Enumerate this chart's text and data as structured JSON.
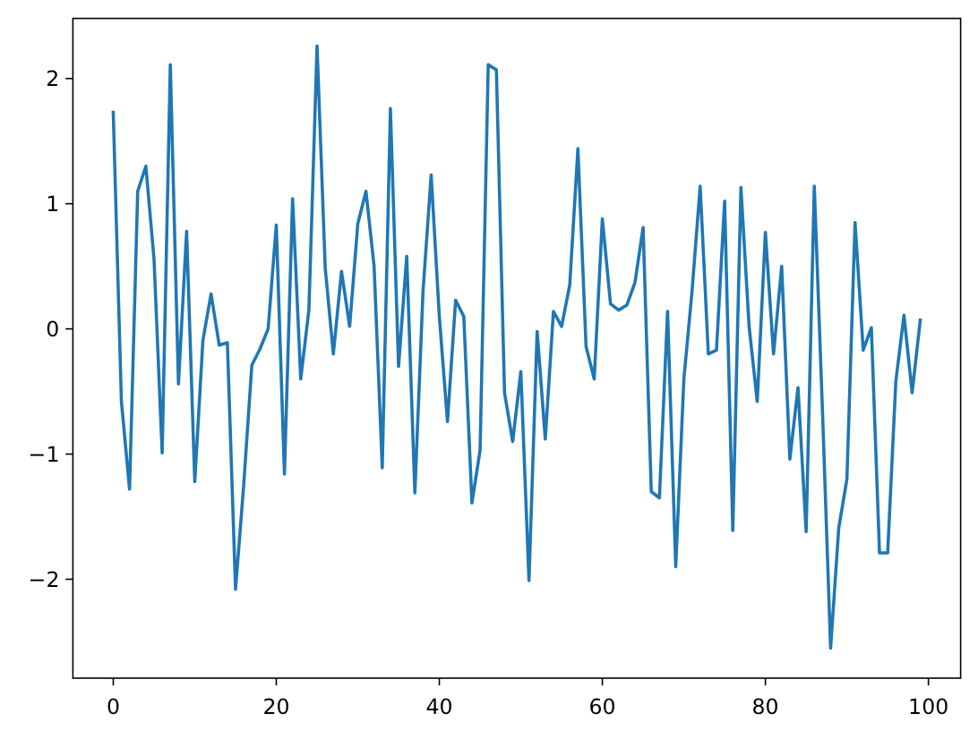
{
  "chart_data": {
    "type": "line",
    "x": [
      0,
      1,
      2,
      3,
      4,
      5,
      6,
      7,
      8,
      9,
      10,
      11,
      12,
      13,
      14,
      15,
      16,
      17,
      18,
      19,
      20,
      21,
      22,
      23,
      24,
      25,
      26,
      27,
      28,
      29,
      30,
      31,
      32,
      33,
      34,
      35,
      36,
      37,
      38,
      39,
      40,
      41,
      42,
      43,
      44,
      45,
      46,
      47,
      48,
      49,
      50,
      51,
      52,
      53,
      54,
      55,
      56,
      57,
      58,
      59,
      60,
      61,
      62,
      63,
      64,
      65,
      66,
      67,
      68,
      69,
      70,
      71,
      72,
      73,
      74,
      75,
      76,
      77,
      78,
      79,
      80,
      81,
      82,
      83,
      84,
      85,
      86,
      87,
      88,
      89,
      90,
      91,
      92,
      93,
      94,
      95,
      96,
      97,
      98,
      99
    ],
    "series": [
      {
        "color": "#1f77b4",
        "values": [
          1.73,
          -0.58,
          -1.28,
          1.1,
          1.3,
          0.56,
          -0.99,
          2.11,
          -0.44,
          0.78,
          -1.22,
          -0.09,
          0.28,
          -0.13,
          -0.11,
          -2.08,
          -1.25,
          -0.29,
          -0.16,
          0.0,
          0.83,
          -1.16,
          1.04,
          -0.4,
          0.15,
          2.26,
          0.49,
          -0.2,
          0.46,
          0.02,
          0.84,
          1.1,
          0.5,
          -1.11,
          1.76,
          -0.3,
          0.58,
          -1.31,
          0.3,
          1.23,
          0.1,
          -0.74,
          0.23,
          0.1,
          -1.39,
          -0.97,
          2.11,
          2.07,
          -0.51,
          -0.9,
          -0.34,
          -2.01,
          -0.02,
          -0.88,
          0.14,
          0.02,
          0.35,
          1.44,
          -0.14,
          -0.4,
          0.88,
          0.2,
          0.15,
          0.19,
          0.37,
          0.81,
          -1.3,
          -1.35,
          0.14,
          -1.9,
          -0.4,
          0.3,
          1.14,
          -0.2,
          -0.17,
          1.02,
          -1.61,
          1.13,
          0.02,
          -0.58,
          0.77,
          -0.2,
          0.5,
          -1.04,
          -0.47,
          -1.62,
          1.14,
          -0.65,
          -2.55,
          -1.59,
          -1.2,
          0.85,
          -0.17,
          0.01,
          -1.79,
          -1.79,
          -0.42,
          0.11,
          -0.51,
          0.07
        ]
      }
    ],
    "xlim": [
      -4.95,
      103.95
    ],
    "ylim": [
      -2.79,
      2.48
    ],
    "xticks": [
      0,
      20,
      40,
      60,
      80,
      100
    ],
    "yticks": [
      {
        "value": -2,
        "label": "−2"
      },
      {
        "value": -1,
        "label": "−1"
      },
      0,
      1,
      2
    ]
  }
}
